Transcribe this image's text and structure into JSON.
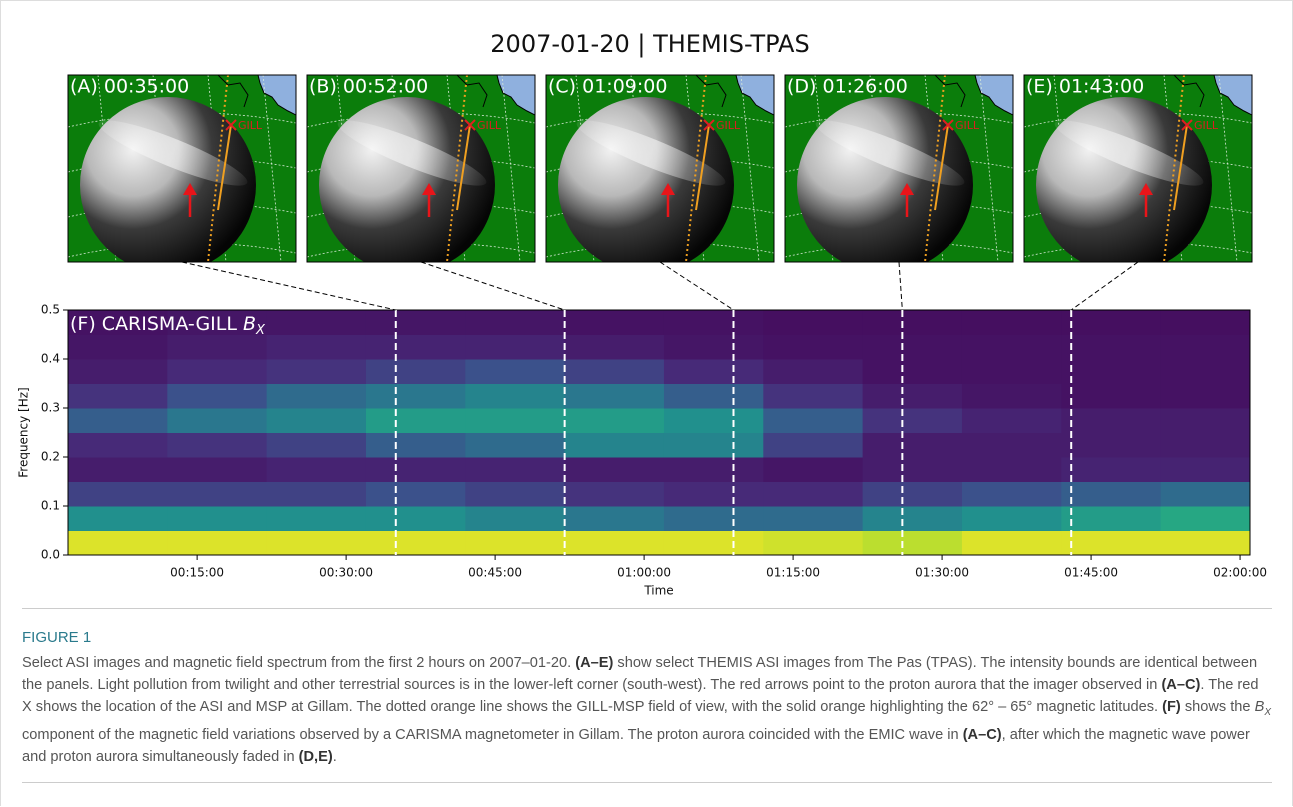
{
  "figure_title": "2007-01-20 | THEMIS-TPAS",
  "panels": [
    {
      "label": "(A) 00:35:00",
      "site": "GILL"
    },
    {
      "label": "(B) 00:52:00",
      "site": "GILL"
    },
    {
      "label": "(C) 01:09:00",
      "site": "GILL"
    },
    {
      "label": "(D) 01:26:00",
      "site": "GILL"
    },
    {
      "label": "(E) 01:43:00",
      "site": "GILL"
    }
  ],
  "chart_data": {
    "type": "heatmap",
    "panel_label": [
      "(F) CARISMA-GILL ",
      "B",
      "X"
    ],
    "ylabel": "Frequency [Hz]",
    "xlabel": "Time",
    "colormap": "viridis",
    "xlim": [
      2,
      121
    ],
    "ylim": [
      0,
      0.5
    ],
    "xticks": [
      {
        "value": 15,
        "label": "00:15:00"
      },
      {
        "value": 30,
        "label": "00:30:00"
      },
      {
        "value": 45,
        "label": "00:45:00"
      },
      {
        "value": 60,
        "label": "01:00:00"
      },
      {
        "value": 75,
        "label": "01:15:00"
      },
      {
        "value": 90,
        "label": "01:30:00"
      },
      {
        "value": 105,
        "label": "01:45:00"
      },
      {
        "value": 120,
        "label": "02:00:00"
      }
    ],
    "yticks": [
      {
        "value": 0,
        "label": "0.0"
      },
      0.1,
      0.2,
      0.3,
      0.4,
      0.5
    ],
    "time_bins": [
      2,
      12,
      22,
      32,
      42,
      52,
      62,
      72,
      82,
      92,
      102,
      112,
      121
    ],
    "freq_bins": [
      0,
      0.05,
      0.1,
      0.15,
      0.2,
      0.25,
      0.3,
      0.35,
      0.4,
      0.45,
      0.5
    ],
    "intensity": [
      [
        0.95,
        0.95,
        0.95,
        0.95,
        0.95,
        0.95,
        0.95,
        0.93,
        0.9,
        0.95,
        0.95,
        0.95
      ],
      [
        0.5,
        0.5,
        0.5,
        0.5,
        0.45,
        0.4,
        0.35,
        0.35,
        0.45,
        0.5,
        0.55,
        0.6
      ],
      [
        0.2,
        0.2,
        0.2,
        0.25,
        0.2,
        0.15,
        0.12,
        0.12,
        0.2,
        0.25,
        0.3,
        0.35
      ],
      [
        0.08,
        0.08,
        0.1,
        0.1,
        0.1,
        0.08,
        0.08,
        0.06,
        0.08,
        0.08,
        0.1,
        0.1
      ],
      [
        0.12,
        0.15,
        0.2,
        0.3,
        0.35,
        0.45,
        0.45,
        0.2,
        0.08,
        0.08,
        0.08,
        0.08
      ],
      [
        0.3,
        0.4,
        0.45,
        0.55,
        0.55,
        0.55,
        0.5,
        0.3,
        0.15,
        0.1,
        0.08,
        0.08
      ],
      [
        0.15,
        0.25,
        0.35,
        0.4,
        0.45,
        0.4,
        0.3,
        0.15,
        0.08,
        0.06,
        0.05,
        0.05
      ],
      [
        0.08,
        0.12,
        0.15,
        0.2,
        0.25,
        0.2,
        0.12,
        0.08,
        0.05,
        0.05,
        0.05,
        0.05
      ],
      [
        0.06,
        0.08,
        0.1,
        0.1,
        0.1,
        0.08,
        0.06,
        0.05,
        0.05,
        0.05,
        0.05,
        0.05
      ],
      [
        0.05,
        0.06,
        0.06,
        0.06,
        0.06,
        0.05,
        0.05,
        0.04,
        0.04,
        0.04,
        0.04,
        0.04
      ]
    ],
    "event_lines": [
      35,
      52,
      69,
      86,
      103
    ]
  },
  "caption": {
    "heading": "FIGURE 1",
    "segments": [
      {
        "text": "Select ASI images and magnetic field spectrum from the first 2 hours on 2007–01-20. "
      },
      {
        "text": "(A–E)",
        "style": "bold"
      },
      {
        "text": " show select THEMIS ASI images from The Pas (TPAS). The intensity bounds are identical between the panels. Light pollution from twilight and other terrestrial sources is in the lower-left corner (south-west). The red arrows point to the proton aurora that the imager observed in "
      },
      {
        "text": "(A–C)",
        "style": "bold"
      },
      {
        "text": ". The red X shows the location of the ASI and MSP at Gillam. The dotted orange line shows the GILL-MSP field of view, with the solid orange highlighting the 62° – 65° magnetic latitudes. "
      },
      {
        "text": "(F)",
        "style": "bold"
      },
      {
        "text": " shows the "
      },
      {
        "text": "B",
        "style": "italic"
      },
      {
        "text": "X",
        "style": "sub"
      },
      {
        "text": " component of the magnetic field variations observed by a CARISMA magnetometer in Gillam. The proton aurora coincided with the EMIC wave in "
      },
      {
        "text": "(A–C)",
        "style": "bold"
      },
      {
        "text": ", after which the magnetic wave power and proton aurora simultaneously faded in "
      },
      {
        "text": "(D,E)",
        "style": "bold"
      },
      {
        "text": "."
      }
    ]
  }
}
